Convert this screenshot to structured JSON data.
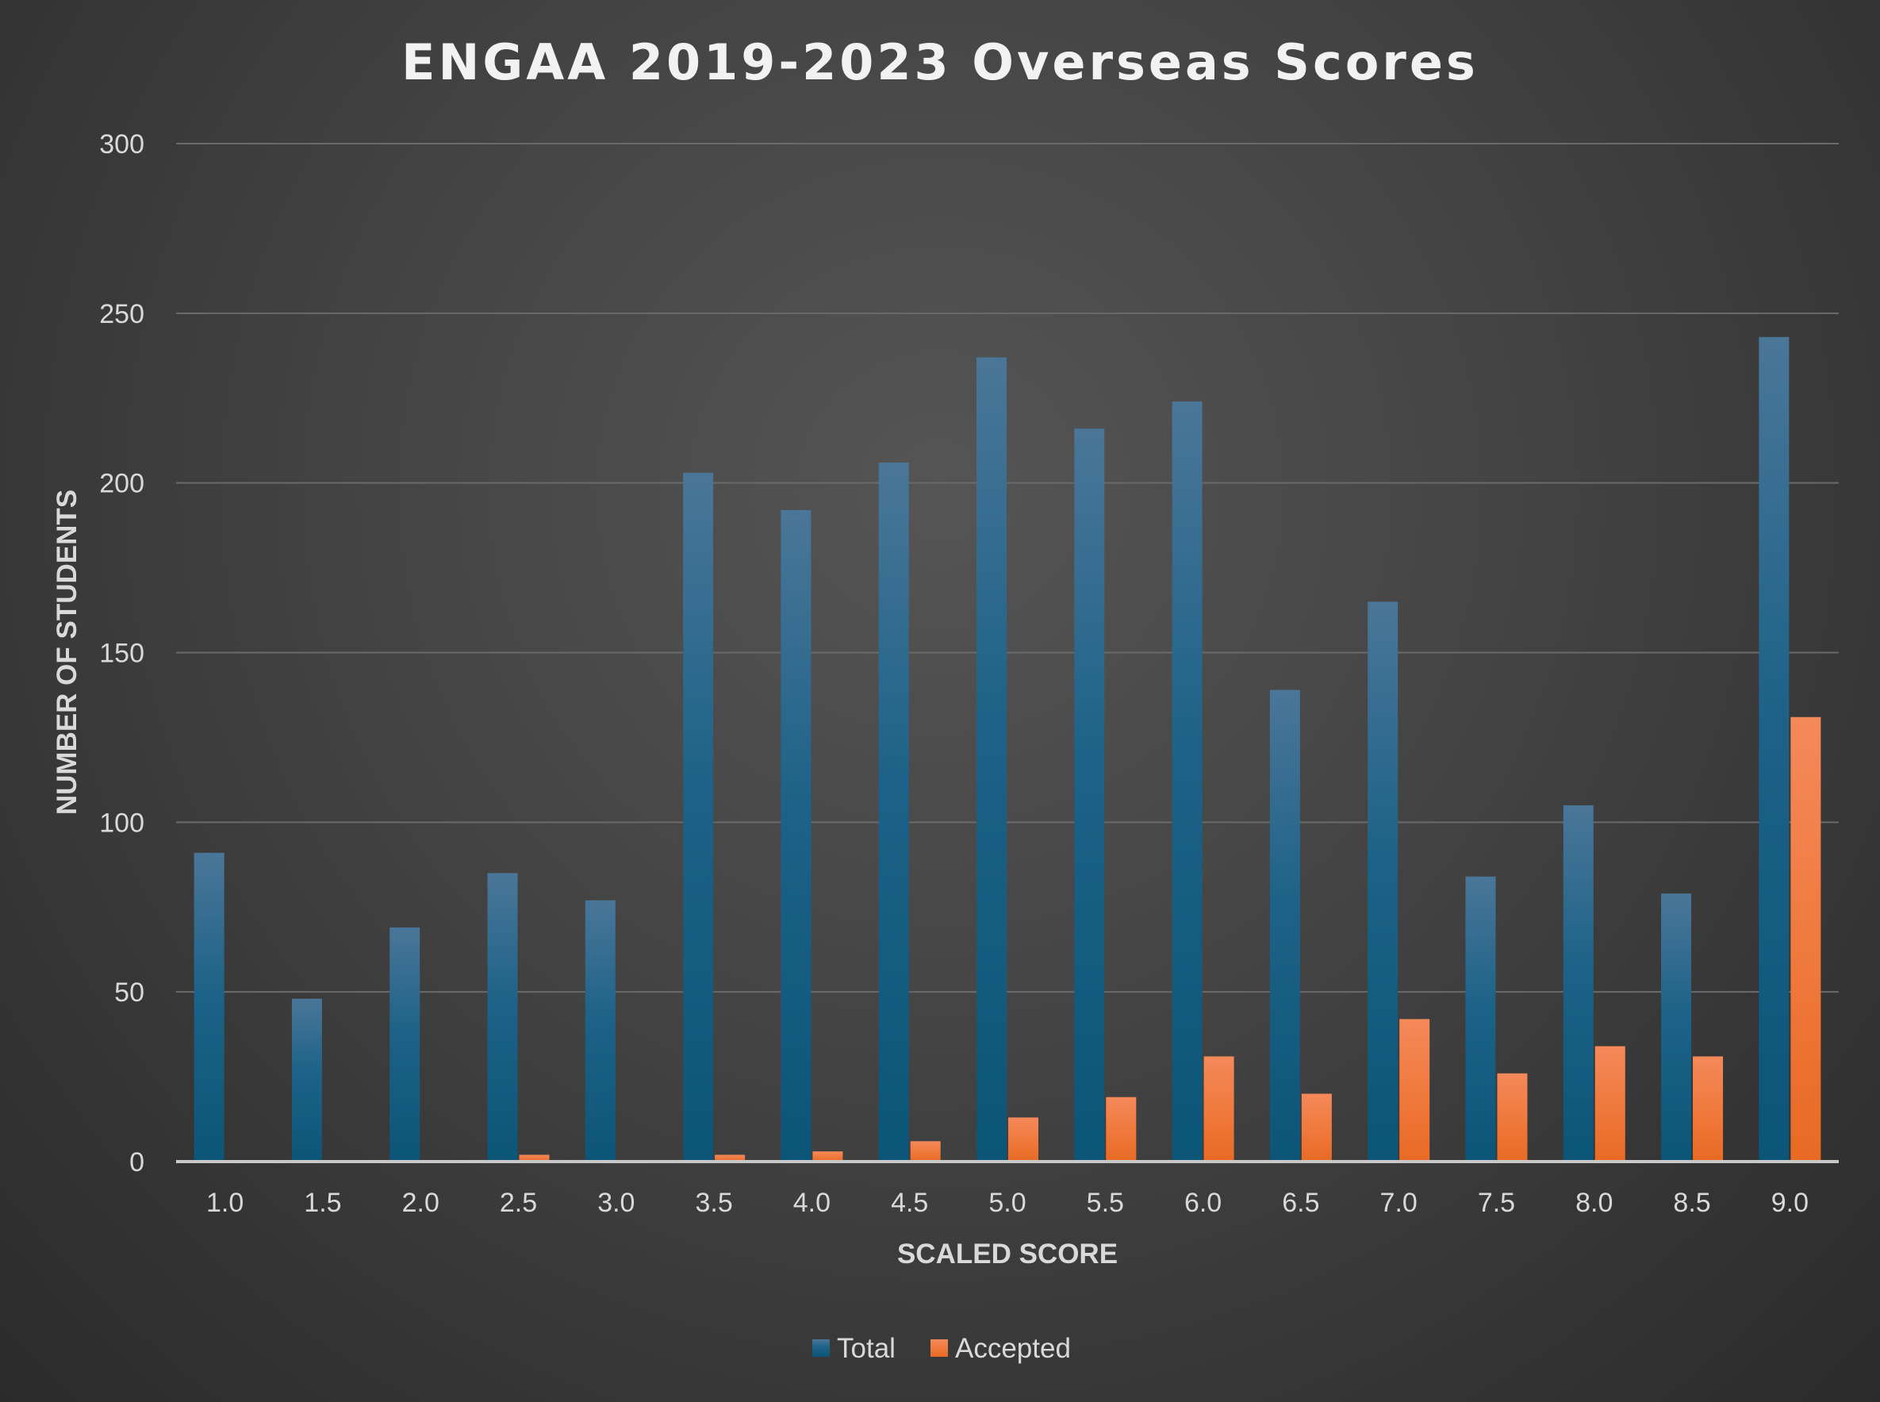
{
  "chart_data": {
    "type": "bar",
    "title": "ENGAA 2019-2023 Overseas Scores",
    "xlabel": "SCALED SCORE",
    "ylabel": "NUMBER OF STUDENTS",
    "ylim": [
      0,
      300
    ],
    "yticks": [
      "0",
      "50",
      "100",
      "150",
      "200",
      "250",
      "300"
    ],
    "categories": [
      "1.0",
      "1.5",
      "2.0",
      "2.5",
      "3.0",
      "3.5",
      "4.0",
      "4.5",
      "5.0",
      "5.5",
      "6.0",
      "6.5",
      "7.0",
      "7.5",
      "8.0",
      "8.5",
      "9.0"
    ],
    "series": [
      {
        "name": "Total",
        "color": "#1f6a95",
        "values": [
          91,
          48,
          69,
          85,
          77,
          203,
          192,
          206,
          237,
          216,
          224,
          139,
          165,
          84,
          105,
          79,
          243
        ]
      },
      {
        "name": "Accepted",
        "color": "#f0773a",
        "values": [
          0,
          0,
          0,
          2,
          0,
          2,
          3,
          6,
          13,
          19,
          31,
          20,
          42,
          26,
          34,
          31,
          131
        ]
      }
    ],
    "grid": true,
    "legend_position": "bottom"
  }
}
